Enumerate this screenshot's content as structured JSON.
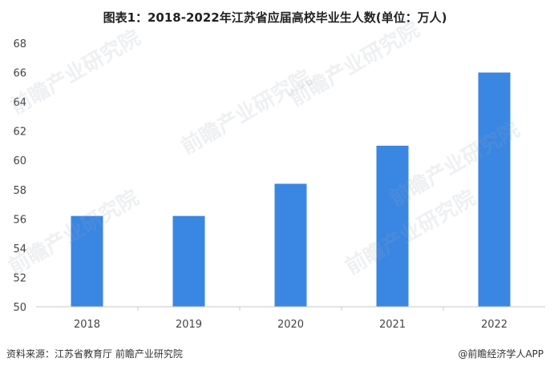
{
  "title": "图表1：2018-2022年江苏省应届高校毕业生人数(单位：万人)",
  "source": "资料来源：江苏省教育厅 前瞻产业研究院",
  "brand": "@前瞻经济学人APP",
  "watermark": "前瞻产业研究院",
  "colors": {
    "bar": "#3a86e3",
    "axis": "#c8c8c8",
    "text": "#444444"
  },
  "chart_data": {
    "type": "bar",
    "title": "图表1：2018-2022年江苏省应届高校毕业生人数(单位：万人)",
    "xlabel": "",
    "ylabel": "",
    "categories": [
      "2018",
      "2019",
      "2020",
      "2021",
      "2022"
    ],
    "values": [
      56.2,
      56.2,
      58.4,
      61.0,
      66.0
    ],
    "ylim": [
      50,
      68
    ],
    "yticks": [
      50,
      52,
      54,
      56,
      58,
      60,
      62,
      64,
      66,
      68
    ],
    "grid": false,
    "legend": "none"
  }
}
